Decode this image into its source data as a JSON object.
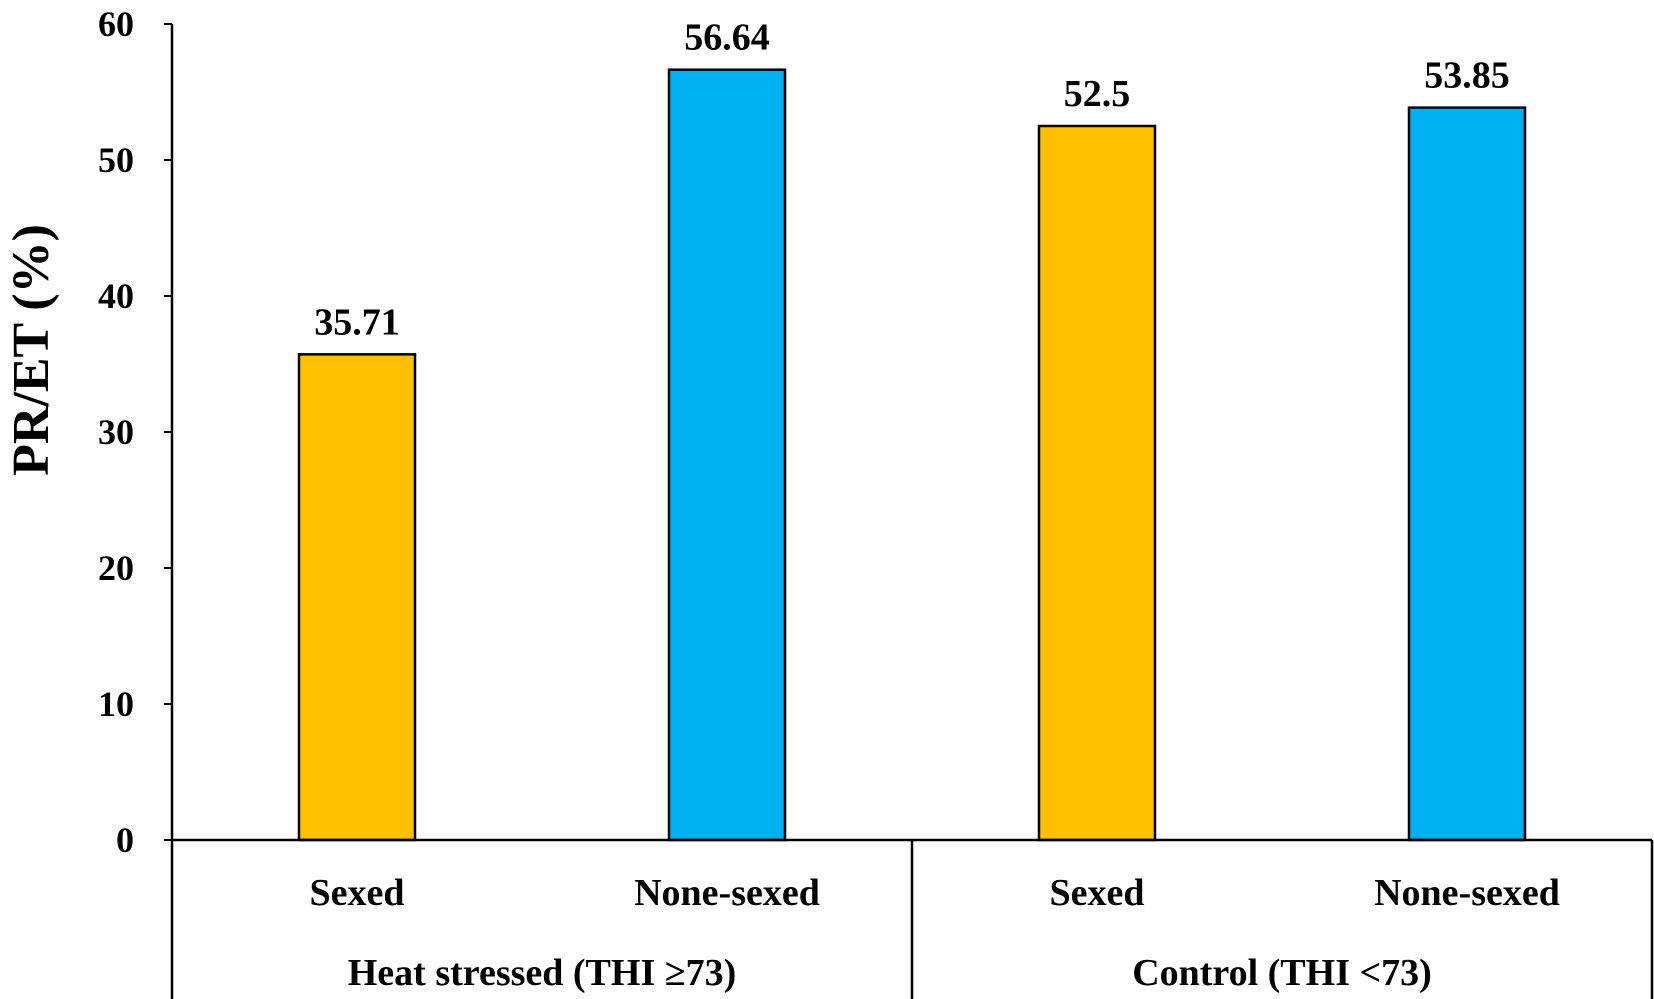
{
  "chart_data": {
    "type": "bar",
    "title": "",
    "xlabel": "",
    "ylabel": "PR/ET (%)",
    "ylim": [
      0,
      60
    ],
    "yticks": [
      0,
      10,
      20,
      30,
      40,
      50,
      60
    ],
    "grid": false,
    "legend": "none",
    "groups": [
      {
        "label": "Heat stressed  (THI ≥73)",
        "categories": [
          "Sexed",
          "None-sexed"
        ],
        "values": [
          35.71,
          56.64
        ],
        "value_labels": [
          "35.71",
          "56.64"
        ]
      },
      {
        "label": "Control  (THI <73)",
        "categories": [
          "Sexed",
          "None-sexed"
        ],
        "values": [
          52.5,
          53.85
        ],
        "value_labels": [
          "52.5",
          "53.85"
        ]
      }
    ],
    "colors": {
      "Sexed": "#FFC000",
      "None-sexed": "#00B0F0"
    }
  }
}
